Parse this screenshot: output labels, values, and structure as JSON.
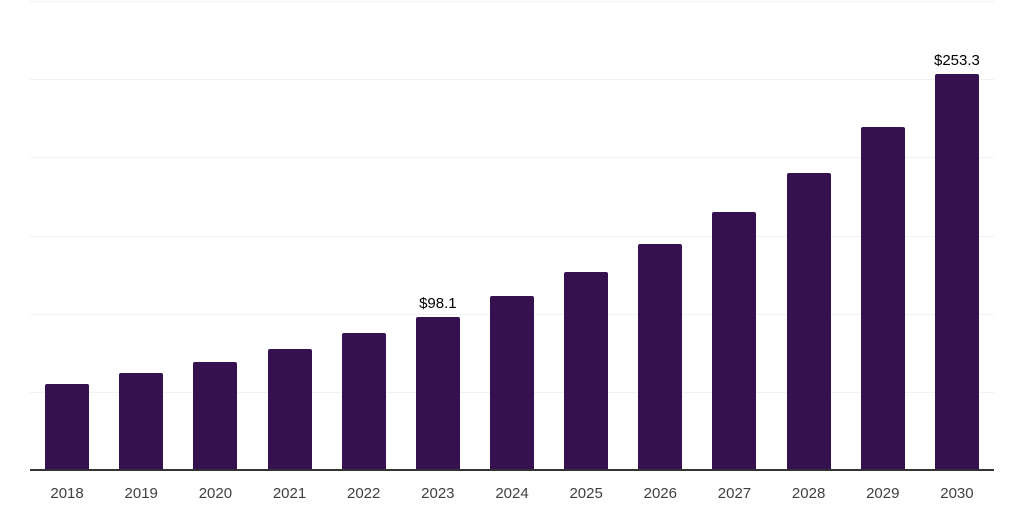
{
  "chart_data": {
    "type": "bar",
    "title": "",
    "xlabel": "",
    "ylabel": "",
    "categories": [
      "2018",
      "2019",
      "2020",
      "2021",
      "2022",
      "2023",
      "2024",
      "2025",
      "2026",
      "2027",
      "2028",
      "2029",
      "2030"
    ],
    "values": [
      55.3,
      61.8,
      69.2,
      77.3,
      87.5,
      98.1,
      111.0,
      126.4,
      144.5,
      164.9,
      190.0,
      219.1,
      253.3
    ],
    "data_labels": [
      null,
      null,
      null,
      null,
      null,
      "$98.1",
      null,
      null,
      null,
      null,
      null,
      null,
      "$253.3"
    ],
    "ylim": [
      0,
      300
    ],
    "grid_step": 50,
    "grid": true,
    "legend": false,
    "y_axis_labels_visible": false,
    "colors": {
      "bar": "#361150",
      "gridline": "#f2f2f2",
      "axis_line": "#333333",
      "tick_label": "#404040",
      "data_label": "#000000",
      "background": "#ffffff"
    }
  }
}
